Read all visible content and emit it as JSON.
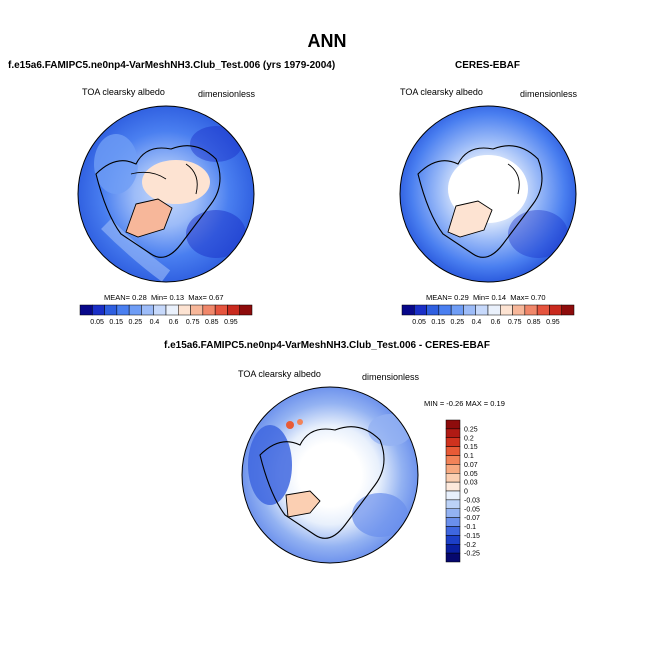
{
  "page": {
    "title": "ANN"
  },
  "panels": [
    {
      "title": "f.e15a6.FAMIPC5.ne0np4-VarMeshNH3.Club_Test.006 (yrs 1979-2004)",
      "variable": "TOA clearsky albedo",
      "units": "dimensionless",
      "stats": {
        "mean_label": "MEAN=",
        "mean": "0.28",
        "min_label": "Min=",
        "min": "0.13",
        "max_label": "Max=",
        "max": "0.67"
      }
    },
    {
      "title": "CERES-EBAF",
      "variable": "TOA clearsky albedo",
      "units": "dimensionless",
      "stats": {
        "mean_label": "MEAN=",
        "mean": "0.29",
        "min_label": "Min=",
        "min": "0.14",
        "max_label": "Max=",
        "max": "0.70"
      }
    },
    {
      "title": "f.e15a6.FAMIPC5.ne0np4-VarMeshNH3.Club_Test.006 - CERES-EBAF",
      "variable": "TOA clearsky albedo",
      "units": "dimensionless",
      "stats_line": "MIN = -0.26 MAX = 0.19"
    }
  ],
  "colorbars": {
    "absolute": {
      "labels": [
        "0.05",
        "0.15",
        "0.25",
        "0.4",
        "0.6",
        "0.75",
        "0.85",
        "0.95"
      ],
      "colors": [
        "#08088a",
        "#1a2fc7",
        "#2f5fe0",
        "#4a7ff0",
        "#6f9df5",
        "#9dbcf8",
        "#c7d9fb",
        "#eaf1fc",
        "#fde3d2",
        "#f7b79a",
        "#f0876a",
        "#e5543e",
        "#c92a1e",
        "#8e0c0c"
      ]
    },
    "difference": {
      "labels": [
        "0.25",
        "0.2",
        "0.15",
        "0.1",
        "0.07",
        "0.05",
        "0.03",
        "0",
        "-0.03",
        "-0.05",
        "-0.07",
        "-0.1",
        "-0.15",
        "-0.2",
        "-0.25"
      ],
      "colors": [
        "#8e0c0c",
        "#b01a14",
        "#d0321e",
        "#e85a36",
        "#f28358",
        "#f7a980",
        "#fbcfb2",
        "#fde9dc",
        "#e8f0fc",
        "#bcd2f7",
        "#93b2f2",
        "#6a8fec",
        "#3e66df",
        "#1c3fc7",
        "#0a1fa0",
        "#06086e"
      ]
    }
  }
}
